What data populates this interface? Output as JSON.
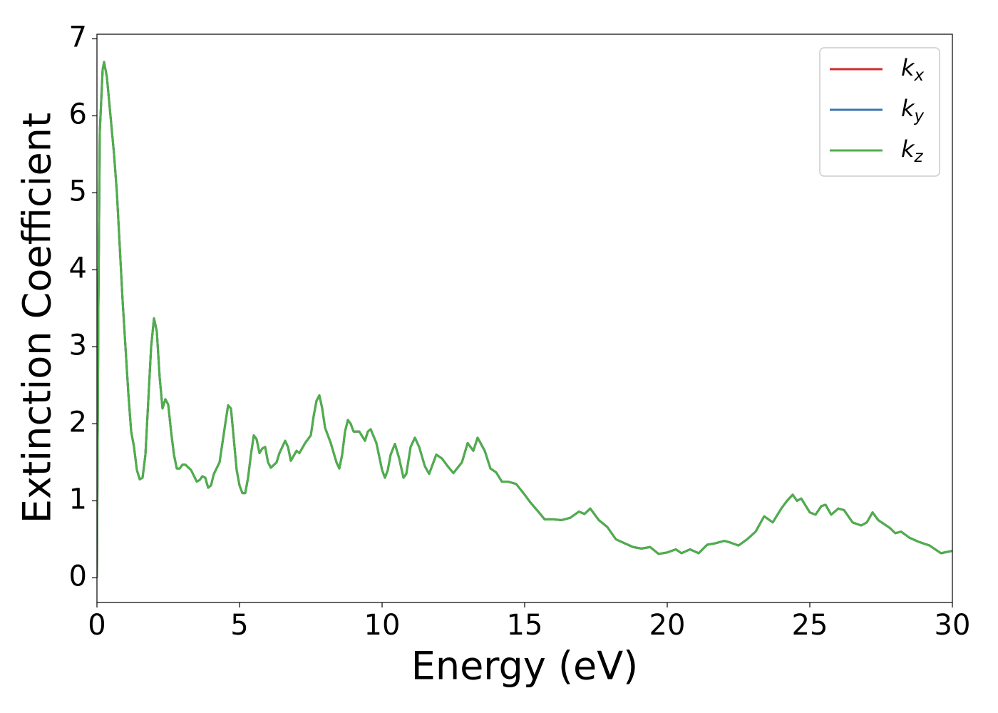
{
  "chart_data": {
    "type": "line",
    "xlabel": "Energy (eV)",
    "ylabel": "Extinction Coefficient",
    "x": [
      0,
      0.05,
      0.1,
      0.2,
      0.25,
      0.35,
      0.5,
      0.6,
      0.7,
      0.8,
      0.9,
      1.0,
      1.1,
      1.2,
      1.3,
      1.4,
      1.5,
      1.6,
      1.7,
      1.8,
      1.9,
      2.0,
      2.1,
      2.2,
      2.3,
      2.4,
      2.5,
      2.6,
      2.7,
      2.8,
      2.9,
      3.0,
      3.1,
      3.3,
      3.5,
      3.6,
      3.7,
      3.8,
      3.9,
      4.0,
      4.1,
      4.3,
      4.5,
      4.6,
      4.7,
      4.8,
      4.9,
      5.0,
      5.1,
      5.2,
      5.3,
      5.4,
      5.5,
      5.6,
      5.7,
      5.8,
      5.9,
      6.0,
      6.1,
      6.3,
      6.4,
      6.6,
      6.7,
      6.8,
      7.0,
      7.1,
      7.3,
      7.5,
      7.6,
      7.7,
      7.8,
      7.9,
      8.0,
      8.2,
      8.4,
      8.5,
      8.6,
      8.7,
      8.8,
      8.9,
      9.0,
      9.2,
      9.4,
      9.5,
      9.6,
      9.8,
      10.0,
      10.1,
      10.2,
      10.3,
      10.45,
      10.6,
      10.75,
      10.85,
      11.0,
      11.15,
      11.3,
      11.5,
      11.65,
      11.8,
      11.9,
      12.1,
      12.3,
      12.5,
      12.8,
      13.0,
      13.2,
      13.35,
      13.6,
      13.8,
      14.0,
      14.2,
      14.4,
      14.7,
      15.0,
      15.2,
      15.5,
      15.7,
      16.0,
      16.3,
      16.6,
      16.9,
      17.1,
      17.3,
      17.6,
      17.9,
      18.2,
      18.5,
      18.8,
      19.1,
      19.4,
      19.7,
      20.0,
      20.3,
      20.5,
      20.8,
      21.1,
      21.4,
      21.7,
      22.0,
      22.2,
      22.5,
      22.8,
      23.1,
      23.4,
      23.7,
      24.0,
      24.2,
      24.4,
      24.55,
      24.7,
      25.0,
      25.2,
      25.4,
      25.55,
      25.75,
      26.0,
      26.2,
      26.5,
      26.8,
      27.0,
      27.2,
      27.4,
      27.8,
      28.0,
      28.2,
      28.5,
      28.8,
      29.2,
      29.6,
      30.0
    ],
    "series": [
      {
        "name": "kx",
        "color": "#d62728",
        "values": [
          0,
          3.5,
          5.8,
          6.6,
          6.7,
          6.5,
          5.9,
          5.5,
          5.0,
          4.3,
          3.6,
          3.0,
          2.4,
          1.9,
          1.7,
          1.4,
          1.28,
          1.3,
          1.6,
          2.3,
          3.0,
          3.37,
          3.2,
          2.6,
          2.2,
          2.32,
          2.25,
          1.9,
          1.6,
          1.42,
          1.42,
          1.47,
          1.47,
          1.4,
          1.25,
          1.27,
          1.32,
          1.3,
          1.17,
          1.2,
          1.35,
          1.5,
          2.0,
          2.24,
          2.2,
          1.8,
          1.4,
          1.2,
          1.1,
          1.1,
          1.3,
          1.6,
          1.85,
          1.8,
          1.62,
          1.68,
          1.7,
          1.5,
          1.43,
          1.5,
          1.62,
          1.78,
          1.7,
          1.52,
          1.65,
          1.62,
          1.75,
          1.85,
          2.1,
          2.3,
          2.37,
          2.2,
          1.95,
          1.75,
          1.5,
          1.42,
          1.6,
          1.9,
          2.05,
          2.0,
          1.9,
          1.9,
          1.78,
          1.9,
          1.93,
          1.75,
          1.4,
          1.3,
          1.4,
          1.6,
          1.74,
          1.55,
          1.3,
          1.35,
          1.7,
          1.82,
          1.7,
          1.45,
          1.35,
          1.5,
          1.6,
          1.55,
          1.45,
          1.36,
          1.5,
          1.75,
          1.65,
          1.82,
          1.65,
          1.42,
          1.37,
          1.25,
          1.25,
          1.22,
          1.08,
          0.98,
          0.85,
          0.76,
          0.76,
          0.75,
          0.78,
          0.86,
          0.83,
          0.9,
          0.75,
          0.66,
          0.5,
          0.45,
          0.4,
          0.38,
          0.4,
          0.31,
          0.33,
          0.37,
          0.32,
          0.37,
          0.32,
          0.43,
          0.45,
          0.48,
          0.46,
          0.42,
          0.5,
          0.6,
          0.8,
          0.72,
          0.9,
          1.0,
          1.08,
          1.0,
          1.03,
          0.85,
          0.82,
          0.93,
          0.95,
          0.82,
          0.9,
          0.88,
          0.72,
          0.68,
          0.72,
          0.85,
          0.75,
          0.65,
          0.58,
          0.6,
          0.52,
          0.47,
          0.42,
          0.32,
          0.35
        ]
      },
      {
        "name": "ky",
        "color": "#3a75b0",
        "values": [
          0,
          3.5,
          5.8,
          6.6,
          6.7,
          6.5,
          5.9,
          5.5,
          5.0,
          4.3,
          3.6,
          3.0,
          2.4,
          1.9,
          1.7,
          1.4,
          1.28,
          1.3,
          1.6,
          2.3,
          3.0,
          3.37,
          3.2,
          2.6,
          2.2,
          2.32,
          2.25,
          1.9,
          1.6,
          1.42,
          1.42,
          1.47,
          1.47,
          1.4,
          1.25,
          1.27,
          1.32,
          1.3,
          1.17,
          1.2,
          1.35,
          1.5,
          2.0,
          2.24,
          2.2,
          1.8,
          1.4,
          1.2,
          1.1,
          1.1,
          1.3,
          1.6,
          1.85,
          1.8,
          1.62,
          1.68,
          1.7,
          1.5,
          1.43,
          1.5,
          1.62,
          1.78,
          1.7,
          1.52,
          1.65,
          1.62,
          1.75,
          1.85,
          2.1,
          2.3,
          2.37,
          2.2,
          1.95,
          1.75,
          1.5,
          1.42,
          1.6,
          1.9,
          2.05,
          2.0,
          1.9,
          1.9,
          1.78,
          1.9,
          1.93,
          1.75,
          1.4,
          1.3,
          1.4,
          1.6,
          1.74,
          1.55,
          1.3,
          1.35,
          1.7,
          1.82,
          1.7,
          1.45,
          1.35,
          1.5,
          1.6,
          1.55,
          1.45,
          1.36,
          1.5,
          1.75,
          1.65,
          1.82,
          1.65,
          1.42,
          1.37,
          1.25,
          1.25,
          1.22,
          1.08,
          0.98,
          0.85,
          0.76,
          0.76,
          0.75,
          0.78,
          0.86,
          0.83,
          0.9,
          0.75,
          0.66,
          0.5,
          0.45,
          0.4,
          0.38,
          0.4,
          0.31,
          0.33,
          0.37,
          0.32,
          0.37,
          0.32,
          0.43,
          0.45,
          0.48,
          0.46,
          0.42,
          0.5,
          0.6,
          0.8,
          0.72,
          0.9,
          1.0,
          1.08,
          1.0,
          1.03,
          0.85,
          0.82,
          0.93,
          0.95,
          0.82,
          0.9,
          0.88,
          0.72,
          0.68,
          0.72,
          0.85,
          0.75,
          0.65,
          0.58,
          0.6,
          0.52,
          0.47,
          0.42,
          0.32,
          0.35
        ]
      },
      {
        "name": "kz",
        "color": "#4daf4a",
        "values": [
          0,
          3.5,
          5.8,
          6.6,
          6.7,
          6.5,
          5.9,
          5.5,
          5.0,
          4.3,
          3.6,
          3.0,
          2.4,
          1.9,
          1.7,
          1.4,
          1.28,
          1.3,
          1.6,
          2.3,
          3.0,
          3.37,
          3.2,
          2.6,
          2.2,
          2.32,
          2.25,
          1.9,
          1.6,
          1.42,
          1.42,
          1.47,
          1.47,
          1.4,
          1.25,
          1.27,
          1.32,
          1.3,
          1.17,
          1.2,
          1.35,
          1.5,
          2.0,
          2.24,
          2.2,
          1.8,
          1.4,
          1.2,
          1.1,
          1.1,
          1.3,
          1.6,
          1.85,
          1.8,
          1.62,
          1.68,
          1.7,
          1.5,
          1.43,
          1.5,
          1.62,
          1.78,
          1.7,
          1.52,
          1.65,
          1.62,
          1.75,
          1.85,
          2.1,
          2.3,
          2.37,
          2.2,
          1.95,
          1.75,
          1.5,
          1.42,
          1.6,
          1.9,
          2.05,
          2.0,
          1.9,
          1.9,
          1.78,
          1.9,
          1.93,
          1.75,
          1.4,
          1.3,
          1.4,
          1.6,
          1.74,
          1.55,
          1.3,
          1.35,
          1.7,
          1.82,
          1.7,
          1.45,
          1.35,
          1.5,
          1.6,
          1.55,
          1.45,
          1.36,
          1.5,
          1.75,
          1.65,
          1.82,
          1.65,
          1.42,
          1.37,
          1.25,
          1.25,
          1.22,
          1.08,
          0.98,
          0.85,
          0.76,
          0.76,
          0.75,
          0.78,
          0.86,
          0.83,
          0.9,
          0.75,
          0.66,
          0.5,
          0.45,
          0.4,
          0.38,
          0.4,
          0.31,
          0.33,
          0.37,
          0.32,
          0.37,
          0.32,
          0.43,
          0.45,
          0.48,
          0.46,
          0.42,
          0.5,
          0.6,
          0.8,
          0.72,
          0.9,
          1.0,
          1.08,
          1.0,
          1.03,
          0.85,
          0.82,
          0.93,
          0.95,
          0.82,
          0.9,
          0.88,
          0.72,
          0.68,
          0.72,
          0.85,
          0.75,
          0.65,
          0.58,
          0.6,
          0.52,
          0.47,
          0.42,
          0.32,
          0.35
        ]
      }
    ],
    "xlim": [
      0,
      30
    ],
    "xticks": [
      0,
      5,
      10,
      15,
      20,
      25,
      30
    ],
    "ylim": [
      -0.32,
      7.06
    ],
    "yticks": [
      0,
      1,
      2,
      3,
      4,
      5,
      6,
      7
    ],
    "grid": false,
    "legend": "upper right"
  }
}
